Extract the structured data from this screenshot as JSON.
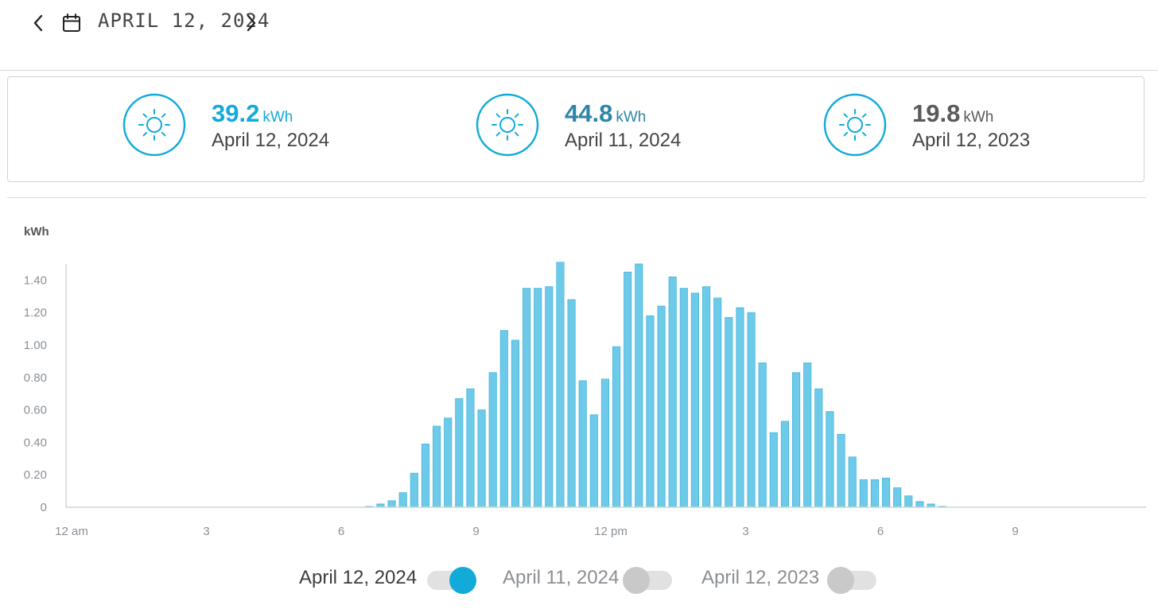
{
  "header": {
    "date_title": "APRIL 12, 2024",
    "prev_icon": "chevron-left-icon",
    "next_icon": "chevron-right-icon",
    "calendar_icon": "calendar-icon"
  },
  "summary": [
    {
      "value": "39.2",
      "unit": "kWh",
      "date": "April 12, 2024",
      "color": "#12abd9",
      "icon": "sun-icon"
    },
    {
      "value": "44.8",
      "unit": "kWh",
      "date": "April 11, 2024",
      "color": "#2c86a6",
      "icon": "sun-icon"
    },
    {
      "value": "19.8",
      "unit": "kWh",
      "date": "April 12, 2023",
      "color": "#5a5a5a",
      "icon": "sun-icon"
    }
  ],
  "colors": {
    "accent": "#12abd9",
    "bar": "#6ecae9",
    "bar_edge": "#45b6dd",
    "toggle_off": "#c9c9c9"
  },
  "chart_data": {
    "type": "bar",
    "ylabel": "kWh",
    "ylim": [
      0,
      1.5
    ],
    "y_ticks": [
      "0",
      "0.20",
      "0.40",
      "0.60",
      "0.80",
      "1.00",
      "1.20",
      "1.40"
    ],
    "y_tick_values": [
      0,
      0.2,
      0.4,
      0.6,
      0.8,
      1.0,
      1.2,
      1.4
    ],
    "x_tick_labels": [
      "12 am",
      "3",
      "6",
      "9",
      "12 pm",
      "3",
      "6",
      "9"
    ],
    "x_tick_hours": [
      0,
      3,
      6,
      9,
      12,
      15,
      18,
      21
    ],
    "x_range_hours": [
      0,
      24
    ],
    "interval_minutes": 15,
    "grid": false,
    "series": [
      {
        "name": "April 12, 2024",
        "values": [
          0,
          0,
          0,
          0,
          0,
          0,
          0,
          0,
          0,
          0,
          0,
          0,
          0,
          0,
          0,
          0,
          0,
          0,
          0,
          0,
          0,
          0,
          0,
          0,
          0,
          0,
          0.005,
          0.02,
          0.04,
          0.09,
          0.21,
          0.39,
          0.5,
          0.55,
          0.67,
          0.73,
          0.6,
          0.83,
          1.09,
          1.03,
          1.35,
          1.35,
          1.36,
          1.51,
          1.28,
          0.78,
          0.57,
          0.79,
          0.99,
          1.45,
          1.5,
          1.18,
          1.24,
          1.42,
          1.35,
          1.32,
          1.36,
          1.29,
          1.17,
          1.23,
          1.2,
          0.89,
          0.46,
          0.53,
          0.83,
          0.89,
          0.73,
          0.59,
          0.45,
          0.31,
          0.17,
          0.17,
          0.18,
          0.12,
          0.07,
          0.035,
          0.02,
          0.005,
          0,
          0,
          0,
          0,
          0,
          0,
          0,
          0,
          0,
          0,
          0,
          0,
          0,
          0,
          0,
          0,
          0,
          0
        ]
      }
    ]
  },
  "legend": [
    {
      "label": "April 12, 2024",
      "on": true,
      "knob_color": "#12abd9"
    },
    {
      "label": "April 11, 2024",
      "on": false,
      "knob_color": "#c9c9c9"
    },
    {
      "label": "April 12, 2023",
      "on": false,
      "knob_color": "#c9c9c9"
    }
  ]
}
